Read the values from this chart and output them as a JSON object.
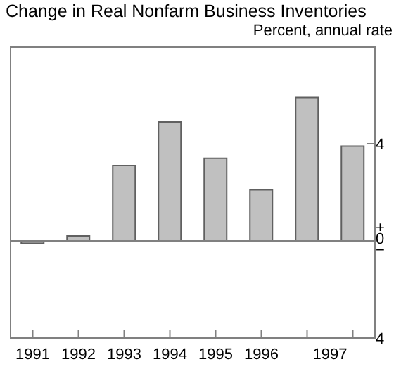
{
  "chart_data": {
    "type": "bar",
    "title": "Change in Real Nonfarm Business Inventories",
    "subtitle": "Percent, annual rate",
    "categories": [
      "1991",
      "1992",
      "1993",
      "1994",
      "1995",
      "1996",
      "1997",
      null
    ],
    "values": [
      -0.1,
      0.2,
      3.1,
      4.9,
      3.4,
      2.1,
      5.9,
      3.9
    ],
    "color": "#c0c0c0",
    "ylim": [
      -4,
      8
    ],
    "yticks": [
      {
        "value": -4,
        "label": "4"
      },
      {
        "value": 0,
        "label": "+\n0\n−"
      },
      {
        "value": 4,
        "label": "4"
      },
      {
        "value": 8,
        "label": null
      }
    ],
    "ref_lines": [
      {
        "axis": "y",
        "value": 0,
        "color": "#808080"
      }
    ],
    "grid": false
  }
}
